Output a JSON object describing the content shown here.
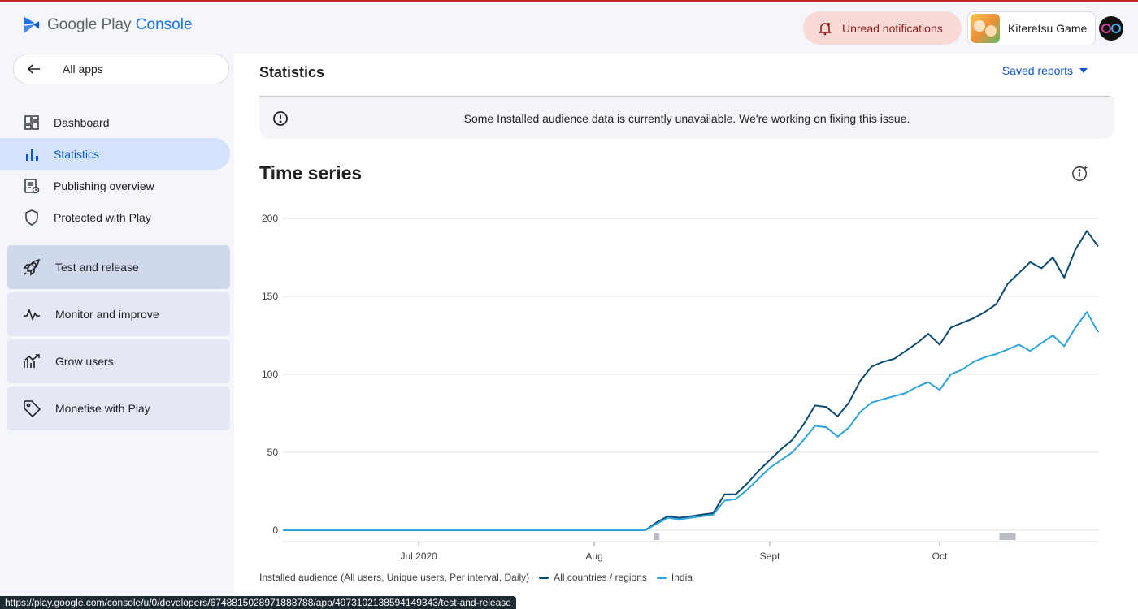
{
  "header": {
    "logo_google": "Google Play",
    "logo_console": "Console",
    "notifications_label": "Unread notifications",
    "app_name": "Kiteretsu Game"
  },
  "sidebar": {
    "all_apps": "All apps",
    "items": [
      {
        "label": "Dashboard",
        "icon": "dashboard-icon"
      },
      {
        "label": "Statistics",
        "icon": "bar-chart-icon"
      },
      {
        "label": "Publishing overview",
        "icon": "publishing-overview-icon"
      },
      {
        "label": "Protected with Play",
        "icon": "shield-icon"
      }
    ],
    "groups": [
      {
        "label": "Test and release",
        "icon": "rocket-icon"
      },
      {
        "label": "Monitor and improve",
        "icon": "pulse-icon"
      },
      {
        "label": "Grow users",
        "icon": "growth-icon"
      },
      {
        "label": "Monetise with Play",
        "icon": "tag-icon"
      }
    ]
  },
  "main": {
    "page_title": "Statistics",
    "saved_reports": "Saved reports",
    "banner_text": "Some Installed audience data is currently unavailable. We're working on fixing this issue.",
    "section_title": "Time series",
    "legend": {
      "metric": "Installed audience (All users, Unique users, Per interval, Daily)"
    }
  },
  "status_bar": {
    "url": "https://play.google.com/console/u/0/developers/6748815028971888788/app/4973102138594149343/test-and-release"
  },
  "colors": {
    "brand": "#1a73e8",
    "all_countries": "#0b4a6f",
    "india": "#2ca4dc",
    "active_nav": "#d3e3fd"
  },
  "chart_data": {
    "type": "line",
    "x_start": "2020-06-07",
    "x_end": "2020-10-29",
    "x_ticks": [
      {
        "label": "Jul 2020",
        "date": "2020-07-01"
      },
      {
        "label": "Aug",
        "date": "2020-08-01"
      },
      {
        "label": "Sept",
        "date": "2020-09-01"
      },
      {
        "label": "Oct",
        "date": "2020-10-01"
      }
    ],
    "y_ticks": [
      0,
      50,
      100,
      150,
      200
    ],
    "ylim": [
      0,
      200
    ],
    "grid": true,
    "legend_position": "bottom-left",
    "series": [
      {
        "name": "All countries / regions",
        "color": "#0b4a6f",
        "points": [
          [
            "2020-06-07",
            0
          ],
          [
            "2020-08-10",
            0
          ],
          [
            "2020-08-12",
            5
          ],
          [
            "2020-08-14",
            9
          ],
          [
            "2020-08-16",
            8
          ],
          [
            "2020-08-18",
            9
          ],
          [
            "2020-08-20",
            10
          ],
          [
            "2020-08-22",
            11
          ],
          [
            "2020-08-24",
            23
          ],
          [
            "2020-08-26",
            23
          ],
          [
            "2020-08-28",
            30
          ],
          [
            "2020-08-30",
            38
          ],
          [
            "2020-09-01",
            45
          ],
          [
            "2020-09-03",
            52
          ],
          [
            "2020-09-05",
            58
          ],
          [
            "2020-09-07",
            68
          ],
          [
            "2020-09-09",
            80
          ],
          [
            "2020-09-11",
            79
          ],
          [
            "2020-09-13",
            73
          ],
          [
            "2020-09-15",
            82
          ],
          [
            "2020-09-17",
            96
          ],
          [
            "2020-09-19",
            105
          ],
          [
            "2020-09-21",
            108
          ],
          [
            "2020-09-23",
            110
          ],
          [
            "2020-09-25",
            115
          ],
          [
            "2020-09-27",
            120
          ],
          [
            "2020-09-29",
            126
          ],
          [
            "2020-10-01",
            119
          ],
          [
            "2020-10-03",
            130
          ],
          [
            "2020-10-05",
            133
          ],
          [
            "2020-10-07",
            136
          ],
          [
            "2020-10-09",
            140
          ],
          [
            "2020-10-11",
            145
          ],
          [
            "2020-10-13",
            158
          ],
          [
            "2020-10-15",
            165
          ],
          [
            "2020-10-17",
            172
          ],
          [
            "2020-10-19",
            168
          ],
          [
            "2020-10-21",
            175
          ],
          [
            "2020-10-23",
            162
          ],
          [
            "2020-10-25",
            180
          ],
          [
            "2020-10-27",
            192
          ],
          [
            "2020-10-29",
            182
          ]
        ]
      },
      {
        "name": "India",
        "color": "#2ca4dc",
        "points": [
          [
            "2020-06-07",
            0
          ],
          [
            "2020-08-10",
            0
          ],
          [
            "2020-08-12",
            4
          ],
          [
            "2020-08-14",
            8
          ],
          [
            "2020-08-16",
            7
          ],
          [
            "2020-08-18",
            8
          ],
          [
            "2020-08-20",
            9
          ],
          [
            "2020-08-22",
            10
          ],
          [
            "2020-08-24",
            19
          ],
          [
            "2020-08-26",
            20
          ],
          [
            "2020-08-28",
            26
          ],
          [
            "2020-08-30",
            33
          ],
          [
            "2020-09-01",
            40
          ],
          [
            "2020-09-03",
            45
          ],
          [
            "2020-09-05",
            50
          ],
          [
            "2020-09-07",
            58
          ],
          [
            "2020-09-09",
            67
          ],
          [
            "2020-09-11",
            66
          ],
          [
            "2020-09-13",
            60
          ],
          [
            "2020-09-15",
            66
          ],
          [
            "2020-09-17",
            76
          ],
          [
            "2020-09-19",
            82
          ],
          [
            "2020-09-21",
            84
          ],
          [
            "2020-09-23",
            86
          ],
          [
            "2020-09-25",
            88
          ],
          [
            "2020-09-27",
            92
          ],
          [
            "2020-09-29",
            95
          ],
          [
            "2020-10-01",
            90
          ],
          [
            "2020-10-03",
            100
          ],
          [
            "2020-10-05",
            103
          ],
          [
            "2020-10-07",
            108
          ],
          [
            "2020-10-09",
            111
          ],
          [
            "2020-10-11",
            113
          ],
          [
            "2020-10-13",
            116
          ],
          [
            "2020-10-15",
            119
          ],
          [
            "2020-10-17",
            115
          ],
          [
            "2020-10-19",
            120
          ],
          [
            "2020-10-21",
            125
          ],
          [
            "2020-10-23",
            118
          ],
          [
            "2020-10-25",
            130
          ],
          [
            "2020-10-27",
            140
          ],
          [
            "2020-10-29",
            127
          ]
        ]
      }
    ]
  }
}
